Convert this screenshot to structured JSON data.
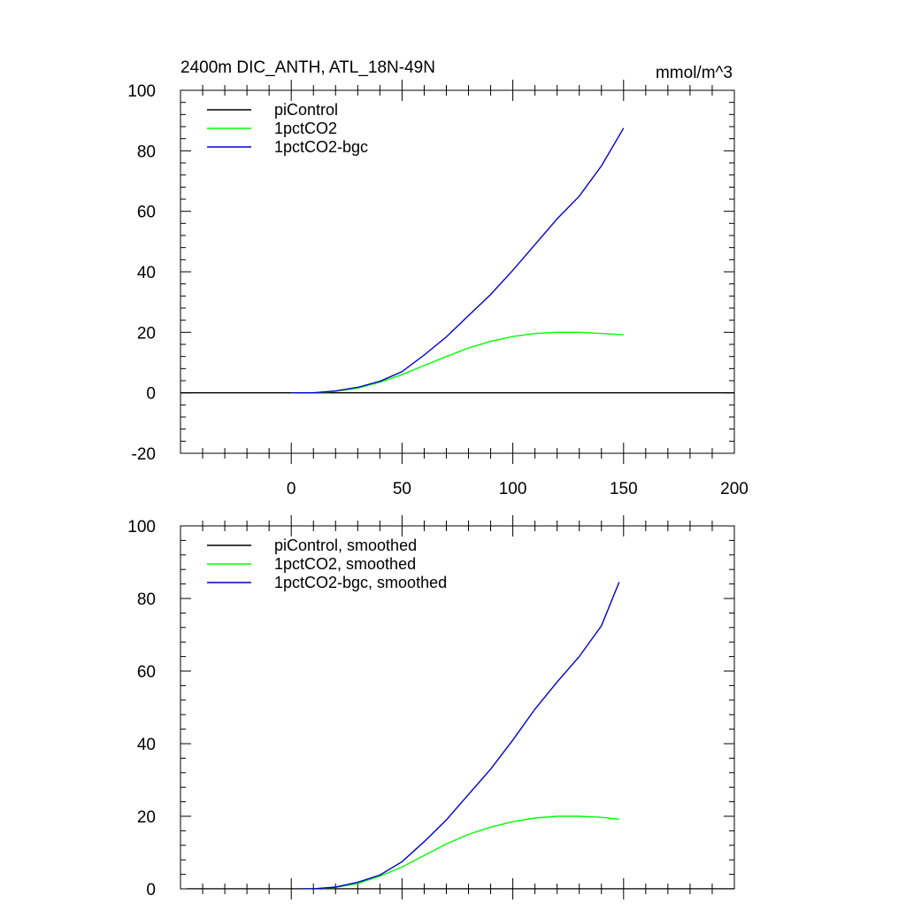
{
  "chart_data": [
    {
      "type": "line",
      "title": "2400m DIC_ANTH, ATL_18N-49N",
      "units": "mmol/m^3",
      "xlim": [
        -50,
        200
      ],
      "ylim": [
        -20,
        100
      ],
      "xticks": [
        0,
        50,
        100,
        150,
        200
      ],
      "xtick_labels": [
        "0",
        "50",
        "100",
        "150",
        "200"
      ],
      "yticks": [
        -20,
        0,
        20,
        40,
        60,
        80,
        100
      ],
      "ytick_labels": [
        "-20",
        "0",
        "20",
        "40",
        "60",
        "80",
        "100"
      ],
      "legend_position": "top-left",
      "series": [
        {
          "name": "piControl",
          "color": "#000000",
          "x": [
            -50,
            200
          ],
          "y": [
            0,
            0
          ]
        },
        {
          "name": "1pctCO2",
          "color": "#00ff00",
          "x": [
            0,
            10,
            20,
            30,
            40,
            50,
            60,
            70,
            80,
            90,
            100,
            110,
            120,
            130,
            140,
            150
          ],
          "y": [
            0,
            0,
            0.5,
            1.5,
            3.5,
            6.0,
            9.0,
            12.0,
            14.8,
            17.0,
            18.6,
            19.6,
            20.0,
            20.0,
            19.6,
            19.2
          ]
        },
        {
          "name": "1pctCO2-bgc",
          "color": "#0000cc",
          "x": [
            0,
            10,
            20,
            30,
            40,
            50,
            60,
            70,
            80,
            90,
            100,
            110,
            120,
            130,
            140,
            150
          ],
          "y": [
            0,
            0,
            0.6,
            1.8,
            3.8,
            7.0,
            12.5,
            18.5,
            25.5,
            32.5,
            40.5,
            49.0,
            57.5,
            65.0,
            75.0,
            87.5
          ]
        }
      ]
    },
    {
      "type": "line",
      "xlim": [
        -50,
        200
      ],
      "ylim": [
        0,
        100
      ],
      "xticks": [
        0,
        50,
        100,
        150,
        200
      ],
      "yticks": [
        0,
        20,
        40,
        60,
        80,
        100
      ],
      "ytick_labels": [
        "0",
        "20",
        "40",
        "60",
        "80",
        "100"
      ],
      "legend_position": "top-left",
      "series": [
        {
          "name": "piControl, smoothed",
          "color": "#000000",
          "x": [
            -47,
            200
          ],
          "y": [
            0,
            0
          ]
        },
        {
          "name": "1pctCO2, smoothed",
          "color": "#00ff00",
          "x": [
            5,
            10,
            20,
            30,
            40,
            50,
            60,
            70,
            80,
            90,
            100,
            110,
            120,
            130,
            140,
            148
          ],
          "y": [
            0,
            0,
            0.4,
            1.5,
            3.5,
            6.0,
            9.2,
            12.4,
            15.0,
            17.0,
            18.5,
            19.5,
            20.0,
            20.0,
            19.7,
            19.2
          ]
        },
        {
          "name": "1pctCO2-bgc, smoothed",
          "color": "#0000cc",
          "x": [
            5,
            10,
            20,
            30,
            40,
            50,
            60,
            70,
            80,
            90,
            100,
            110,
            120,
            130,
            140,
            148
          ],
          "y": [
            0,
            0,
            0.5,
            1.8,
            3.8,
            7.5,
            13.0,
            19.0,
            26.0,
            33.0,
            41.0,
            49.5,
            57.0,
            64.0,
            72.5,
            84.5
          ]
        }
      ]
    }
  ]
}
